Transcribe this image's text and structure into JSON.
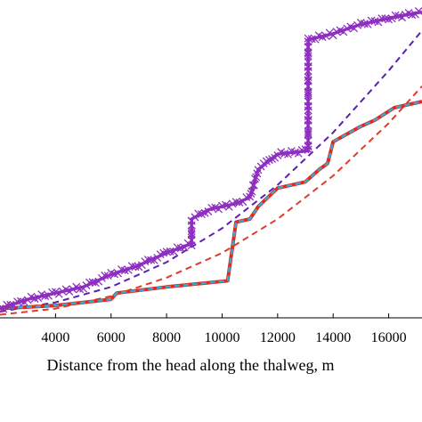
{
  "chart_data": {
    "type": "line",
    "xlabel": "Distance from the head along the thalweg, m",
    "ylabel": "",
    "title": "",
    "xlim": [
      2000,
      17200
    ],
    "ylim": [
      0,
      100
    ],
    "x_ticks": [
      4000,
      6000,
      8000,
      10000,
      12000,
      14000,
      16000
    ],
    "grid": false,
    "series": [
      {
        "style": "purple-solid-x-markers",
        "color": "#8e2fc0",
        "points": [
          [
            2000,
            3
          ],
          [
            3000,
            6
          ],
          [
            4000,
            8
          ],
          [
            5000,
            10
          ],
          [
            6000,
            14
          ],
          [
            7000,
            17
          ],
          [
            8000,
            21
          ],
          [
            8900,
            24
          ],
          [
            8900,
            32
          ],
          [
            9500,
            35
          ],
          [
            10500,
            37
          ],
          [
            11000,
            39
          ],
          [
            11300,
            48
          ],
          [
            12000,
            53
          ],
          [
            13000,
            54
          ],
          [
            13100,
            54
          ],
          [
            13100,
            90
          ],
          [
            14000,
            92
          ],
          [
            15000,
            95
          ],
          [
            16000,
            97
          ],
          [
            17200,
            99
          ]
        ]
      },
      {
        "style": "red-solid-step",
        "color": "#e02a1a",
        "points": [
          [
            2000,
            3
          ],
          [
            4000,
            4
          ],
          [
            6000,
            6
          ],
          [
            6200,
            8
          ],
          [
            8000,
            10
          ],
          [
            10200,
            12
          ],
          [
            10500,
            31
          ],
          [
            11000,
            32
          ],
          [
            11300,
            36
          ],
          [
            12000,
            42
          ],
          [
            13000,
            44
          ],
          [
            13500,
            48
          ],
          [
            13800,
            50
          ],
          [
            14000,
            57
          ],
          [
            15000,
            62
          ],
          [
            15500,
            64
          ],
          [
            16200,
            68
          ],
          [
            17200,
            70
          ]
        ]
      },
      {
        "style": "cyan-dashed-step",
        "color": "#3aa6d6",
        "points": [
          [
            2000,
            3
          ],
          [
            4000,
            4
          ],
          [
            6000,
            6
          ],
          [
            6200,
            8
          ],
          [
            8000,
            10
          ],
          [
            10200,
            12
          ],
          [
            10500,
            31
          ],
          [
            11000,
            32
          ],
          [
            11300,
            36
          ],
          [
            12000,
            42
          ],
          [
            13000,
            44
          ],
          [
            13500,
            48
          ],
          [
            13800,
            50
          ],
          [
            14000,
            57
          ],
          [
            15000,
            62
          ],
          [
            15500,
            64
          ],
          [
            16200,
            68
          ],
          [
            17200,
            70
          ]
        ]
      },
      {
        "style": "purple-dashed-fit",
        "color": "#5a1fb0",
        "points": [
          [
            2000,
            2
          ],
          [
            4000,
            5
          ],
          [
            6000,
            10
          ],
          [
            8000,
            18
          ],
          [
            10000,
            29
          ],
          [
            12000,
            43
          ],
          [
            14000,
            60
          ],
          [
            16000,
            80
          ],
          [
            17200,
            93
          ]
        ]
      },
      {
        "style": "red-dashed-fit",
        "color": "#e03a2a",
        "points": [
          [
            2000,
            1
          ],
          [
            4000,
            3
          ],
          [
            6000,
            7
          ],
          [
            8000,
            13
          ],
          [
            10000,
            21
          ],
          [
            12000,
            32
          ],
          [
            14000,
            46
          ],
          [
            16000,
            63
          ],
          [
            17200,
            75
          ]
        ]
      }
    ]
  }
}
